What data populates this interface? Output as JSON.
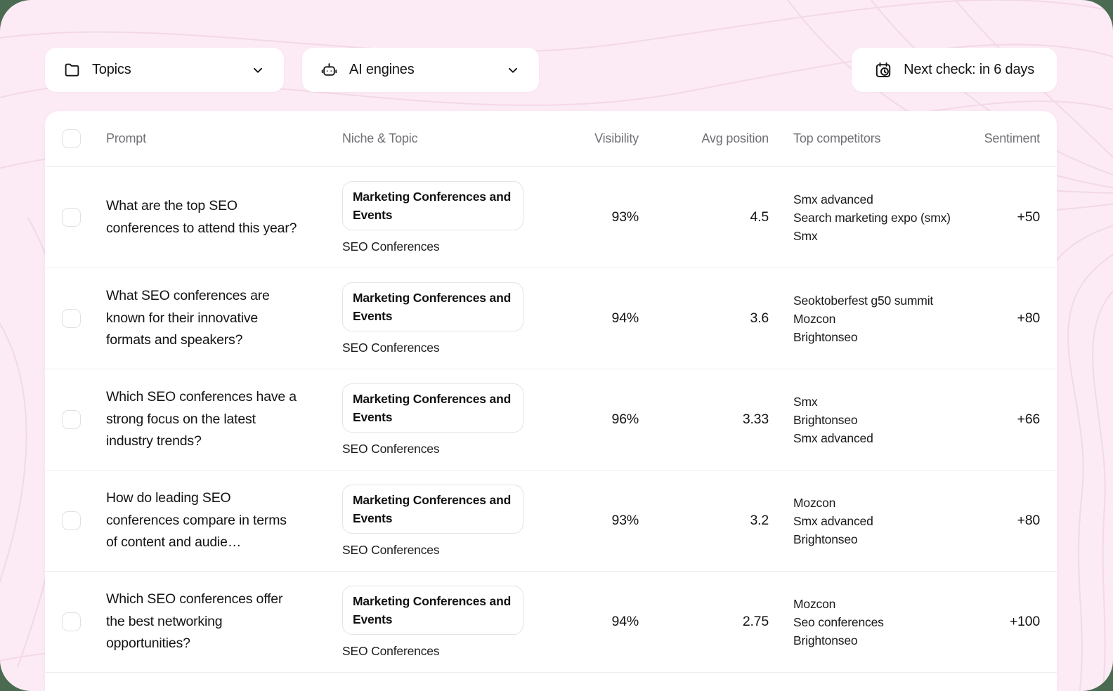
{
  "colors": {
    "frame_outside_green": "#4a6b51",
    "background_pink": "#fcebf5",
    "contour_pink": "#f3d8e8",
    "card_white": "#ffffff",
    "text_primary": "#141414",
    "text_header_gray": "#717076",
    "border_light": "#ededed"
  },
  "toolbar": {
    "topics": {
      "label": "Topics",
      "icon": "folder-icon"
    },
    "ai_engines": {
      "label": "AI engines",
      "icon": "robot-icon"
    },
    "next_check": {
      "label": "Next check: in 6 days",
      "icon": "calendar-clock-icon"
    }
  },
  "table": {
    "columns": [
      "Prompt",
      "Niche & Topic",
      "Visibility",
      "Avg position",
      "Top competitors",
      "Sentiment"
    ],
    "rows": [
      {
        "prompt": "What are the top SEO conferences to attend this year?",
        "niche": "Marketing Conferences and Events",
        "topic": "SEO Conferences",
        "visibility": "93%",
        "avg_position": "4.5",
        "competitors": [
          "Smx advanced",
          "Search marketing expo (smx)",
          "Smx"
        ],
        "sentiment": "+50"
      },
      {
        "prompt": "What SEO conferences are known for their innovative formats and speakers?",
        "niche": "Marketing Conferences and Events",
        "topic": "SEO Conferences",
        "visibility": "94%",
        "avg_position": "3.6",
        "competitors": [
          "Seoktoberfest g50 summit",
          "Mozcon",
          "Brightonseo"
        ],
        "sentiment": "+80"
      },
      {
        "prompt": "Which SEO conferences have a strong focus on the latest industry trends?",
        "niche": "Marketing Conferences and Events",
        "topic": "SEO Conferences",
        "visibility": "96%",
        "avg_position": "3.33",
        "competitors": [
          "Smx",
          "Brightonseo",
          "Smx advanced"
        ],
        "sentiment": "+66"
      },
      {
        "prompt": "How do leading SEO conferences compare in terms of content and audie…",
        "niche": "Marketing Conferences and Events",
        "topic": "SEO Conferences",
        "visibility": "93%",
        "avg_position": "3.2",
        "competitors": [
          "Mozcon",
          "Smx advanced",
          "Brightonseo"
        ],
        "sentiment": "+80"
      },
      {
        "prompt": "Which SEO conferences offer the best networking opportunities?",
        "niche": "Marketing Conferences and Events",
        "topic": "SEO Conferences",
        "visibility": "94%",
        "avg_position": "2.75",
        "competitors": [
          "Mozcon",
          "Seo conferences",
          "Brightonseo"
        ],
        "sentiment": "+100"
      }
    ]
  }
}
